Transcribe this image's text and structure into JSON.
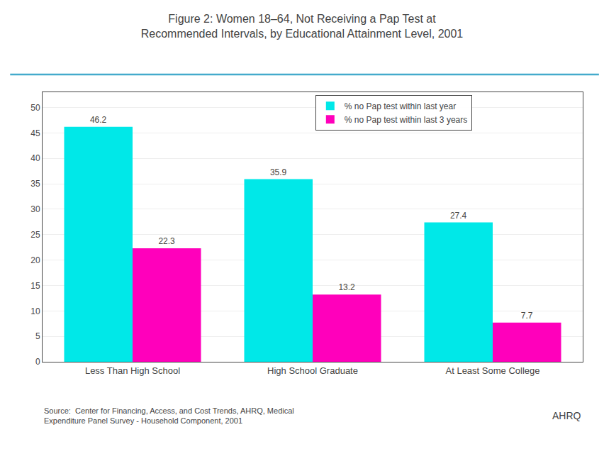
{
  "chart_data": {
    "type": "bar",
    "title": "Figure 2: Women 18–64, Not Receiving a Pap Test at\nRecommended Intervals, by Educational Attainment Level, 2001",
    "categories": [
      "Less Than High School",
      "High School Graduate",
      "At Least Some College"
    ],
    "series": [
      {
        "name": "% no Pap test within last year",
        "color": "#00e8e8",
        "values": [
          46.2,
          35.9,
          27.4
        ]
      },
      {
        "name": "% no Pap test within last 3 years",
        "color": "#ff00bb",
        "values": [
          22.3,
          13.2,
          7.7
        ]
      }
    ],
    "ylim": [
      0,
      53
    ],
    "yticks": [
      0,
      5,
      10,
      15,
      20,
      25,
      30,
      35,
      40,
      45,
      50
    ],
    "grid": true,
    "legend": "upper center",
    "data_labels": true,
    "annotations": [
      "Source:  Center for Financing, Access, and Cost Trends, AHRQ, Medical\nExpenditure Panel Survey - Household Component, 2001",
      "AHRQ"
    ]
  }
}
